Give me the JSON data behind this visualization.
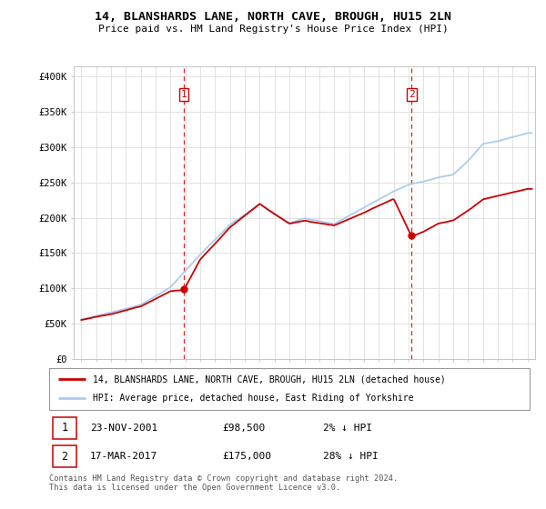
{
  "title": "14, BLANSHARDS LANE, NORTH CAVE, BROUGH, HU15 2LN",
  "subtitle": "Price paid vs. HM Land Registry's House Price Index (HPI)",
  "ylabel_ticks": [
    "£0",
    "£50K",
    "£100K",
    "£150K",
    "£200K",
    "£250K",
    "£300K",
    "£350K",
    "£400K"
  ],
  "ytick_values": [
    0,
    50000,
    100000,
    150000,
    200000,
    250000,
    300000,
    350000,
    400000
  ],
  "ylim": [
    0,
    415000
  ],
  "xlim_start": 1994.5,
  "xlim_end": 2025.5,
  "purchase1_x": 2001.9,
  "purchase1_y": 98500,
  "purchase2_x": 2017.21,
  "purchase2_y": 175000,
  "hpi_line_color": "#aaccee",
  "price_line_color": "#cc0000",
  "vline_color": "#cc0000",
  "grid_color": "#dddddd",
  "legend_label1": "14, BLANSHARDS LANE, NORTH CAVE, BROUGH, HU15 2LN (detached house)",
  "legend_label2": "HPI: Average price, detached house, East Riding of Yorkshire",
  "table_row1": [
    "1",
    "23-NOV-2001",
    "£98,500",
    "2% ↓ HPI"
  ],
  "table_row2": [
    "2",
    "17-MAR-2017",
    "£175,000",
    "28% ↓ HPI"
  ],
  "footnote": "Contains HM Land Registry data © Crown copyright and database right 2024.\nThis data is licensed under the Open Government Licence v3.0.",
  "xtick_years": [
    1995,
    1996,
    1997,
    1998,
    1999,
    2000,
    2001,
    2002,
    2003,
    2004,
    2005,
    2006,
    2007,
    2008,
    2009,
    2010,
    2011,
    2012,
    2013,
    2014,
    2015,
    2016,
    2017,
    2018,
    2019,
    2020,
    2021,
    2022,
    2023,
    2024,
    2025
  ],
  "hpi_anchors_years": [
    1995,
    1997,
    1999,
    2001,
    2003,
    2005,
    2007,
    2008,
    2009,
    2010,
    2012,
    2014,
    2016,
    2017,
    2018,
    2019,
    2020,
    2021,
    2022,
    2023,
    2024,
    2025
  ],
  "hpi_anchors_vals": [
    56000,
    66000,
    77000,
    102000,
    148000,
    190000,
    220000,
    205000,
    193000,
    200000,
    192000,
    215000,
    238000,
    248000,
    252000,
    258000,
    262000,
    282000,
    306000,
    310000,
    316000,
    322000
  ],
  "price_anchors_years": [
    1995,
    1997,
    1999,
    2001,
    2001.9,
    2003,
    2005,
    2007,
    2008,
    2009,
    2010,
    2012,
    2014,
    2016,
    2017.2,
    2018,
    2019,
    2020,
    2021,
    2022,
    2023,
    2024,
    2025
  ],
  "price_anchors_vals": [
    55000,
    64000,
    75000,
    97000,
    98500,
    142000,
    188000,
    222000,
    207000,
    193000,
    197000,
    190000,
    208000,
    228000,
    175000,
    182000,
    193000,
    198000,
    212000,
    228000,
    233000,
    238000,
    243000
  ]
}
